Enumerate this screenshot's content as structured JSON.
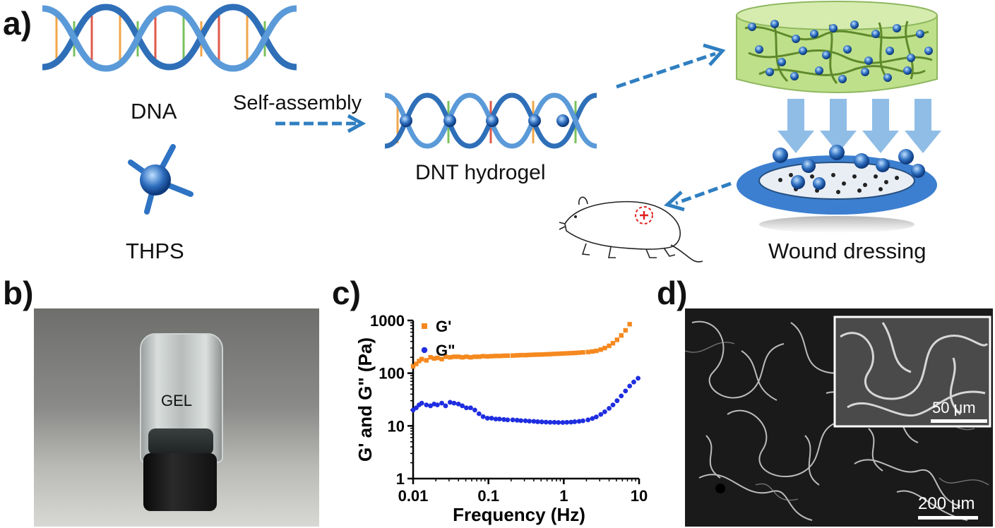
{
  "panels": {
    "a": {
      "label": "a)",
      "dna_label": "DNA",
      "thps_label": "THPS",
      "assembly_label": "Self-assembly",
      "hydrogel_label": "DNT hydrogel",
      "dressing_label": "Wound dressing"
    },
    "b": {
      "label": "b)",
      "gel_text": "GEL"
    },
    "c": {
      "label": "c)"
    },
    "d": {
      "label": "d)",
      "inset_scale": "50 μm",
      "main_scale": "200 μm"
    }
  },
  "colors": {
    "dna_blue": "#2e6fb8",
    "arrow_blue": "#2f7fc1",
    "gel_green": "#bfe08a",
    "g_prime": "#f5891f",
    "g_double": "#1f2ee0",
    "wound_red": "#e02020"
  },
  "chart_data": {
    "type": "scatter",
    "xlabel": "Frequency (Hz)",
    "ylabel": "G' and G\" (Pa)",
    "xscale": "log",
    "yscale": "log",
    "xlim": [
      0.01,
      10
    ],
    "ylim": [
      1,
      1000
    ],
    "xticks": [
      "0.01",
      "0.1",
      "1",
      "10"
    ],
    "yticks": [
      "1",
      "10",
      "100",
      "1000"
    ],
    "legend_position": "top-left",
    "series": [
      {
        "name": "G'",
        "color": "#f5891f",
        "marker": "square",
        "points": [
          [
            0.01,
            135
          ],
          [
            0.011,
            150
          ],
          [
            0.012,
            170
          ],
          [
            0.013,
            185
          ],
          [
            0.015,
            175
          ],
          [
            0.017,
            200
          ],
          [
            0.019,
            190
          ],
          [
            0.021,
            195
          ],
          [
            0.024,
            185
          ],
          [
            0.027,
            205
          ],
          [
            0.031,
            200
          ],
          [
            0.035,
            205
          ],
          [
            0.04,
            205
          ],
          [
            0.045,
            200
          ],
          [
            0.051,
            205
          ],
          [
            0.058,
            200
          ],
          [
            0.066,
            205
          ],
          [
            0.075,
            205
          ],
          [
            0.085,
            210
          ],
          [
            0.097,
            208
          ],
          [
            0.11,
            210
          ],
          [
            0.125,
            212
          ],
          [
            0.14,
            212
          ],
          [
            0.16,
            214
          ],
          [
            0.18,
            215
          ],
          [
            0.21,
            216
          ],
          [
            0.24,
            218
          ],
          [
            0.27,
            220
          ],
          [
            0.31,
            220
          ],
          [
            0.35,
            222
          ],
          [
            0.4,
            224
          ],
          [
            0.45,
            225
          ],
          [
            0.51,
            226
          ],
          [
            0.58,
            228
          ],
          [
            0.66,
            230
          ],
          [
            0.75,
            232
          ],
          [
            0.85,
            234
          ],
          [
            0.97,
            236
          ],
          [
            1.1,
            238
          ],
          [
            1.25,
            240
          ],
          [
            1.4,
            242
          ],
          [
            1.6,
            245
          ],
          [
            1.8,
            248
          ],
          [
            2.1,
            252
          ],
          [
            2.4,
            258
          ],
          [
            2.7,
            265
          ],
          [
            3.1,
            280
          ],
          [
            3.5,
            300
          ],
          [
            4.0,
            330
          ],
          [
            4.5,
            370
          ],
          [
            5.1,
            430
          ],
          [
            5.8,
            520
          ],
          [
            6.6,
            650
          ],
          [
            7.5,
            850
          ]
        ]
      },
      {
        "name": "G\"",
        "color": "#1f2ee0",
        "marker": "circle",
        "points": [
          [
            0.01,
            20
          ],
          [
            0.011,
            22
          ],
          [
            0.012,
            25
          ],
          [
            0.013,
            27
          ],
          [
            0.015,
            25
          ],
          [
            0.017,
            24
          ],
          [
            0.019,
            26
          ],
          [
            0.021,
            25
          ],
          [
            0.024,
            27
          ],
          [
            0.027,
            24
          ],
          [
            0.031,
            28
          ],
          [
            0.035,
            27
          ],
          [
            0.04,
            26
          ],
          [
            0.045,
            24
          ],
          [
            0.051,
            22
          ],
          [
            0.058,
            22
          ],
          [
            0.066,
            20
          ],
          [
            0.075,
            17
          ],
          [
            0.085,
            15
          ],
          [
            0.097,
            14
          ],
          [
            0.11,
            14
          ],
          [
            0.125,
            13.5
          ],
          [
            0.14,
            13.5
          ],
          [
            0.16,
            13.2
          ],
          [
            0.18,
            13
          ],
          [
            0.21,
            13
          ],
          [
            0.24,
            12.8
          ],
          [
            0.27,
            12.6
          ],
          [
            0.31,
            12.5
          ],
          [
            0.35,
            12.3
          ],
          [
            0.4,
            12.2
          ],
          [
            0.45,
            12
          ],
          [
            0.51,
            11.9
          ],
          [
            0.58,
            11.8
          ],
          [
            0.66,
            11.7
          ],
          [
            0.75,
            11.7
          ],
          [
            0.85,
            11.6
          ],
          [
            0.97,
            11.6
          ],
          [
            1.1,
            11.7
          ],
          [
            1.25,
            11.8
          ],
          [
            1.4,
            12
          ],
          [
            1.6,
            12.2
          ],
          [
            1.8,
            12.5
          ],
          [
            2.1,
            13
          ],
          [
            2.4,
            13.8
          ],
          [
            2.7,
            14.8
          ],
          [
            3.1,
            16.5
          ],
          [
            3.5,
            18.5
          ],
          [
            4.0,
            21.5
          ],
          [
            4.5,
            25
          ],
          [
            5.1,
            30
          ],
          [
            5.8,
            37
          ],
          [
            6.6,
            46
          ],
          [
            7.5,
            57
          ],
          [
            8.5,
            68
          ],
          [
            9.7,
            80
          ]
        ]
      }
    ]
  }
}
